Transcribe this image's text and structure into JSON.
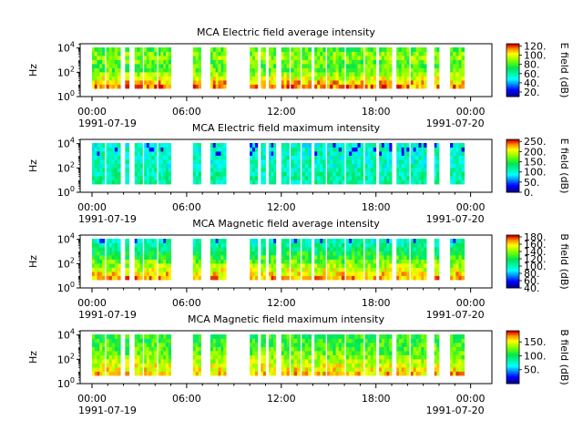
{
  "time_axis": {
    "ticks": [
      "00:00",
      "06:00",
      "12:00",
      "18:00",
      "00:00"
    ],
    "start_date": "1991-07-19",
    "end_date": "1991-07-20"
  },
  "chart_data": [
    {
      "type": "heatmap",
      "title": "MCA  Electric field average intensity",
      "ylabel": "Hz",
      "y_ticks": [
        "10^0",
        "10^2",
        "10^4"
      ],
      "colorbar_label": "E field (dB)",
      "colorbar_ticks": [
        "120.",
        "100.",
        "80.",
        "60.",
        "40.",
        "20."
      ],
      "colorbar_range": [
        10,
        125
      ],
      "profile": "e_avg"
    },
    {
      "type": "heatmap",
      "title": "MCA  Electric field maximum intensity",
      "ylabel": "Hz",
      "y_ticks": [
        "10^0",
        "10^2",
        "10^4"
      ],
      "colorbar_label": "E field (dB)",
      "colorbar_ticks": [
        "250.",
        "200.",
        "150.",
        "100.",
        "50.",
        "0."
      ],
      "colorbar_range": [
        0,
        260
      ],
      "profile": "e_max"
    },
    {
      "type": "heatmap",
      "title": "MCA  Magnetic field average intensity",
      "ylabel": "Hz",
      "y_ticks": [
        "10^0",
        "10^2",
        "10^4"
      ],
      "colorbar_label": "B field (dB)",
      "colorbar_ticks": [
        "180.",
        "160.",
        "140.",
        "120.",
        "100.",
        "80.",
        "60.",
        "40."
      ],
      "colorbar_range": [
        40,
        185
      ],
      "profile": "b_avg"
    },
    {
      "type": "heatmap",
      "title": "MCA  Magnetic field maximum intensity",
      "ylabel": "Hz",
      "y_ticks": [
        "10^0",
        "10^2",
        "10^4"
      ],
      "colorbar_label": "B field (dB)",
      "colorbar_ticks": [
        "150.",
        "100.",
        "50."
      ],
      "colorbar_range": [
        0,
        190
      ],
      "profile": "b_max"
    }
  ],
  "data_segments_hours": [
    [
      0.0,
      0.8
    ],
    [
      0.9,
      1.8
    ],
    [
      2.1,
      2.35
    ],
    [
      2.7,
      3.2
    ],
    [
      3.3,
      4.1
    ],
    [
      4.2,
      5.0
    ],
    [
      6.4,
      6.9
    ],
    [
      7.5,
      8.5
    ],
    [
      10.0,
      10.5
    ],
    [
      10.7,
      11.0
    ],
    [
      11.2,
      11.65
    ],
    [
      12.0,
      12.5
    ],
    [
      12.6,
      13.2
    ],
    [
      13.3,
      13.9
    ],
    [
      14.1,
      14.8
    ],
    [
      14.9,
      16.0
    ],
    [
      16.1,
      17.2
    ],
    [
      17.3,
      18.0
    ],
    [
      18.2,
      19.0
    ],
    [
      19.3,
      20.1
    ],
    [
      20.2,
      21.2
    ],
    [
      21.7,
      22.0
    ],
    [
      22.7,
      23.6
    ]
  ]
}
